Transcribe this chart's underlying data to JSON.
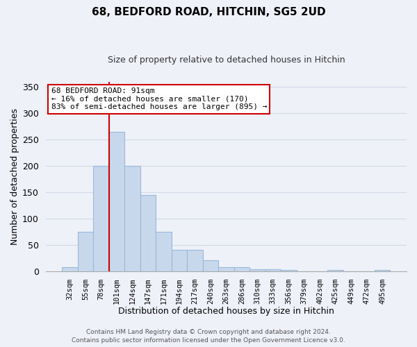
{
  "title": "68, BEDFORD ROAD, HITCHIN, SG5 2UD",
  "subtitle": "Size of property relative to detached houses in Hitchin",
  "xlabel": "Distribution of detached houses by size in Hitchin",
  "ylabel": "Number of detached properties",
  "bar_color": "#c8d8ec",
  "bar_edge_color": "#9ab8d8",
  "bin_labels": [
    "32sqm",
    "55sqm",
    "78sqm",
    "101sqm",
    "124sqm",
    "147sqm",
    "171sqm",
    "194sqm",
    "217sqm",
    "240sqm",
    "263sqm",
    "286sqm",
    "310sqm",
    "333sqm",
    "356sqm",
    "379sqm",
    "402sqm",
    "425sqm",
    "449sqm",
    "472sqm",
    "495sqm"
  ],
  "bar_heights": [
    7,
    75,
    200,
    265,
    200,
    145,
    75,
    40,
    40,
    20,
    7,
    7,
    4,
    4,
    2,
    0,
    0,
    2,
    0,
    0,
    2
  ],
  "ylim": [
    0,
    360
  ],
  "yticks": [
    0,
    50,
    100,
    150,
    200,
    250,
    300,
    350
  ],
  "vline_x_index": 2,
  "annotation_title": "68 BEDFORD ROAD: 91sqm",
  "annotation_line1": "← 16% of detached houses are smaller (170)",
  "annotation_line2": "83% of semi-detached houses are larger (895) →",
  "annotation_box_color": "#ffffff",
  "annotation_box_edge": "#cc0000",
  "vline_color": "#cc0000",
  "footer1": "Contains HM Land Registry data © Crown copyright and database right 2024.",
  "footer2": "Contains public sector information licensed under the Open Government Licence v3.0.",
  "background_color": "#eef2f8",
  "plot_bg_color": "#eef2f8",
  "grid_color": "#d0d8e8"
}
